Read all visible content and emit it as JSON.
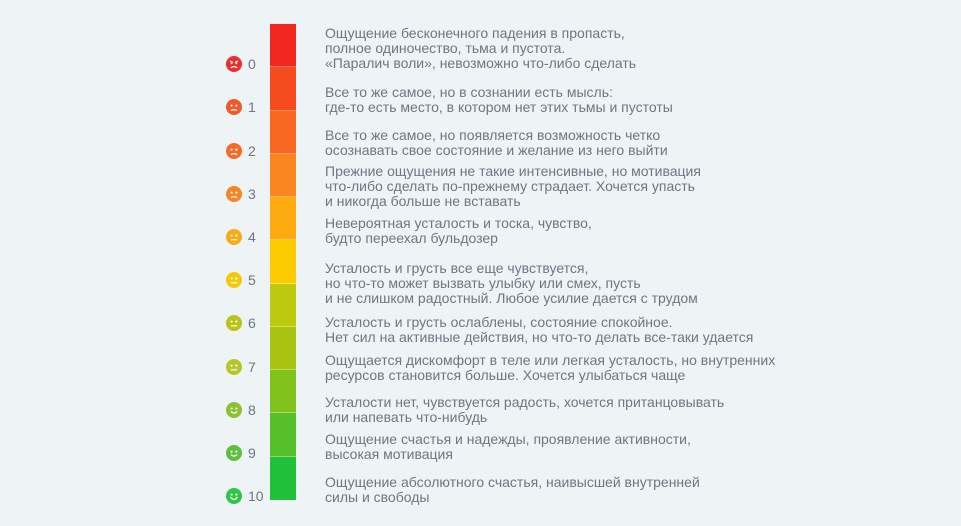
{
  "levels": [
    {
      "value": 0,
      "label": "0",
      "mood": "very-sad",
      "color": "#f2271f",
      "face_color": "#e8302e",
      "lines": [
        "Ощущение бесконечного падения в пропасть,",
        "полное одиночество, тьма и пустота.",
        "«Паралич воли», невозможно что-либо сделать"
      ]
    },
    {
      "value": 1,
      "label": "1",
      "mood": "sad",
      "color": "#f54b1e",
      "face_color": "#ee5a2a",
      "lines": [
        "Все то же самое, но в сознании есть мысль:",
        "где-то есть место, в котором нет этих тьмы и пустоты"
      ]
    },
    {
      "value": 2,
      "label": "2",
      "mood": "sad",
      "color": "#f86820",
      "face_color": "#f26d28",
      "lines": [
        "Все то же самое, но появляется возможность четко",
        "осознавать свое состояние и желание из него выйти"
      ]
    },
    {
      "value": 3,
      "label": "3",
      "mood": "sad",
      "color": "#fa861f",
      "face_color": "#f58526",
      "lines": [
        "Прежние ощущения не такие интенсивные, но мотивация",
        "что-либо сделать по-прежнему страдает. Хочется упасть",
        "и никогда больше не вставать"
      ]
    },
    {
      "value": 4,
      "label": "4",
      "mood": "neutral",
      "color": "#fcaa0e",
      "face_color": "#f8ab16",
      "lines": [
        "Невероятная усталость и тоска, чувство,",
        "будто переехал бульдозер"
      ]
    },
    {
      "value": 5,
      "label": "5",
      "mood": "neutral",
      "color": "#fccc00",
      "face_color": "#f6c80c",
      "lines": [
        "Усталость и грусть все еще чувствуется,",
        "но что-то может вызвать улыбку или смех, пусть",
        "и не слишком радостный. Любое усилие дается с трудом"
      ]
    },
    {
      "value": 6,
      "label": "6",
      "mood": "neutral",
      "color": "#bdc90f",
      "face_color": "#b8c418",
      "lines": [
        "Усталость и грусть ослаблены, состояние спокойное.",
        "Нет сил на активные действия, но что-то делать все-таки удается"
      ]
    },
    {
      "value": 7,
      "label": "7",
      "mood": "neutral",
      "color": "#a9c312",
      "face_color": "#b6c52a",
      "lines": [
        "Ощущается дискомфорт в теле или легкая усталость, но внутренних",
        "ресурсов становится больше. Хочется улыбаться чаще"
      ]
    },
    {
      "value": 8,
      "label": "8",
      "mood": "smile",
      "color": "#82c21c",
      "face_color": "#8ac230",
      "lines": [
        "Усталости нет, чувствуется радость, хочется пританцовывать",
        "или напевать что-нибудь"
      ]
    },
    {
      "value": 9,
      "label": "9",
      "mood": "smile",
      "color": "#56c02a",
      "face_color": "#5cc03a",
      "lines": [
        "Ощущение счастья и надежды, проявление активности,",
        "высокая мотивация"
      ]
    },
    {
      "value": 10,
      "label": "10",
      "mood": "happy",
      "color": "#22c13a",
      "face_color": "#2ec646",
      "lines": [
        "Ощущение абсолютного счастья, наивысшей внутренней",
        "силы и свободы"
      ]
    }
  ]
}
